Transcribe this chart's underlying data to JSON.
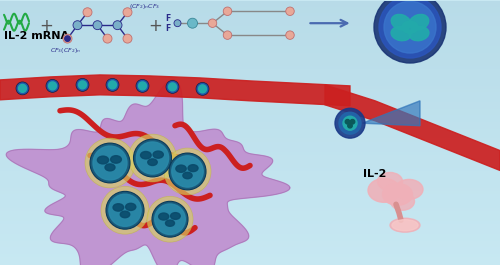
{
  "bg_color": "#c8e8f2",
  "bg_color_bottom": "#b0d8ea",
  "il2_mrna_label": "IL-2 mRNA",
  "il2_label": "IL-2",
  "arrow_color": "#4a6ab0",
  "mrna_wave_color": "#22aa44",
  "fpei_bond_color": "#2a2a8a",
  "fpei_node_color": "#3a3a9a",
  "fpei_circle_pink": "#e8a898",
  "fpei_circle_blue": "#7ab0c8",
  "fcpl_bond_color": "#888888",
  "fcpl_circle_teal": "#6ab8c8",
  "fcpl_circle_pink": "#e8a898",
  "np_outer_color": "#2255aa",
  "np_mid_color": "#3377cc",
  "np_inner_color": "#22aaaa",
  "tumor_color": "#c090d0",
  "tumor_edge_color": "#a070b0",
  "blood_vessel_color": "#cc2020",
  "cell_outer_color": "#336688",
  "cell_inner_color": "#22aaaa",
  "cell_nucleus_color": "#115577",
  "cell_glow_color": "#e0d890",
  "comet_outer": "#1a3a88",
  "comet_inner": "#2266aa",
  "comet_cell": "#22aaaa",
  "comet_tail": "#4488cc",
  "il2_body_color": "#f0b0b8",
  "il2_stem_color": "#e09090",
  "label_fontsize": 8,
  "plus_fontsize": 12,
  "cf_label_color": "#2a2a8a",
  "cf_label_fontsize": 4.5
}
